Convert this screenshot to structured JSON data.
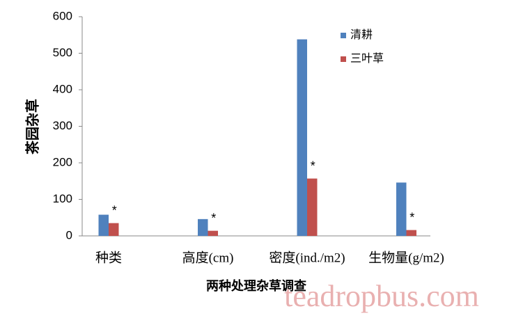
{
  "chart_data": {
    "type": "bar",
    "categories": [
      "种类",
      "高度(cm)",
      "密度(ind./m2)",
      "生物量(g/m2)"
    ],
    "series": [
      {
        "name": "清耕",
        "color": "#4f81bd",
        "values": [
          58,
          46,
          538,
          146
        ]
      },
      {
        "name": "三叶草",
        "color": "#c0504d",
        "values": [
          35,
          14,
          157,
          16
        ]
      }
    ],
    "significance": [
      "*",
      "*",
      "*",
      "*"
    ],
    "xlabel": "两种处理杂草调查",
    "ylabel": "茶园杂草",
    "ylim": [
      0,
      600
    ],
    "yticks": [
      0,
      100,
      200,
      300,
      400,
      500,
      600
    ],
    "grid": false,
    "legend": "upper right",
    "watermark": "teadropbus.com"
  }
}
